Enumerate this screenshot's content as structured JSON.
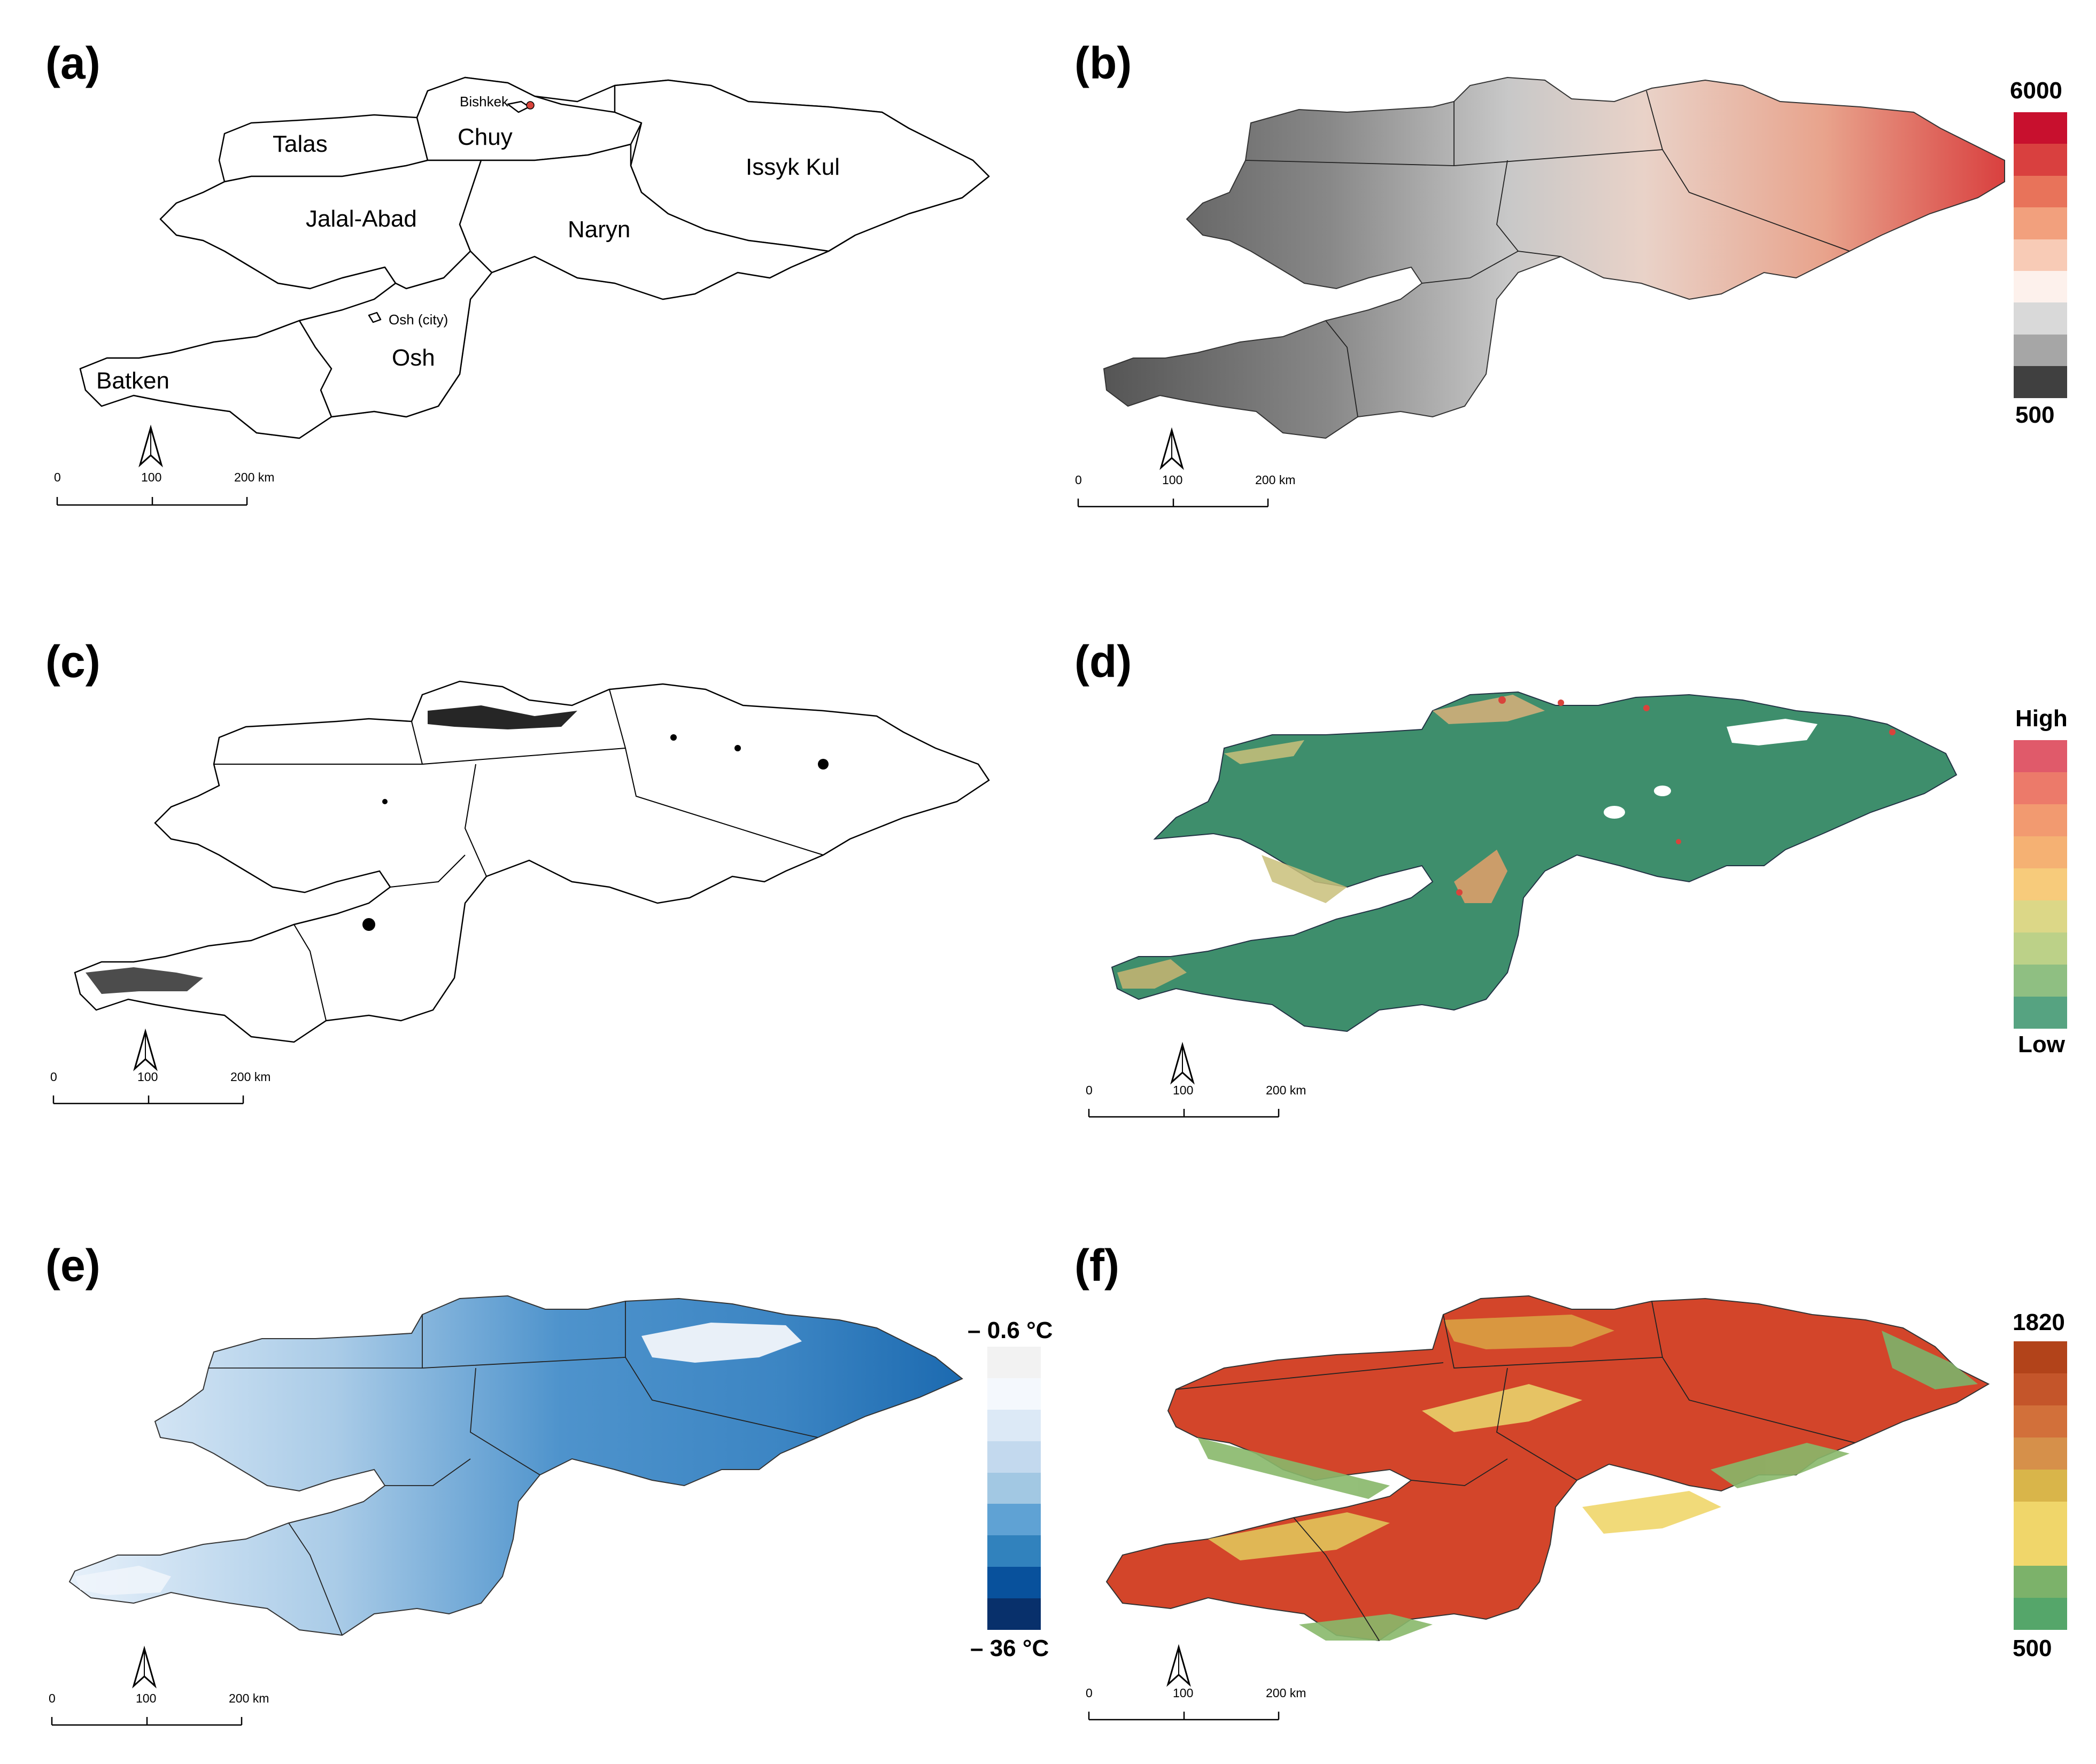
{
  "panels": {
    "a": {
      "letter": "(a)",
      "regions": {
        "talas": "Talas",
        "chuy": "Chuy",
        "bishkek": "Bishkek",
        "issyk_kul": "Issyk Kul",
        "jalal_abad": "Jalal-Abad",
        "naryn": "Naryn",
        "osh_city": "Osh (city)",
        "osh": "Osh",
        "batken": "Batken"
      }
    },
    "b": {
      "letter": "(b)",
      "legend_max": "6000",
      "legend_min": "500",
      "legend_colors": [
        "#c8102e",
        "#d9403f",
        "#e8735a",
        "#f2a07d",
        "#f8cbb6",
        "#fdf1ec",
        "#d9d9d9",
        "#a6a6a6",
        "#404040"
      ]
    },
    "c": {
      "letter": "(c)"
    },
    "d": {
      "letter": "(d)",
      "legend_max": "High",
      "legend_min": "Low",
      "legend_colors": [
        "#e05a6a",
        "#ec7a6a",
        "#f29a70",
        "#f5b173",
        "#f7cb7b",
        "#dcd787",
        "#bcd188",
        "#8fbf82",
        "#56a381"
      ]
    },
    "e": {
      "letter": "(e)",
      "legend_max": "– 0.6 °C",
      "legend_min": "– 36 °C",
      "legend_colors": [
        "#f2f2f2",
        "#f4f8fd",
        "#dce9f6",
        "#c3d9ee",
        "#a2c8e3",
        "#5fa2d4",
        "#3182bd",
        "#08519c",
        "#08306b"
      ]
    },
    "f": {
      "letter": "(f)",
      "legend_max": "1820",
      "legend_min": "500",
      "legend_colors": [
        "#b2431a",
        "#c4552a",
        "#d2703a",
        "#d6904a",
        "#d9b54a",
        "#f0d66a",
        "#f0d66a",
        "#7cb26a",
        "#55a66a"
      ]
    }
  },
  "scale_bar": {
    "tick_0": "0",
    "tick_100": "100",
    "tick_200": "200 km"
  },
  "colors": {
    "boundary": "#000000",
    "bishkek_marker": "#d9433b"
  }
}
